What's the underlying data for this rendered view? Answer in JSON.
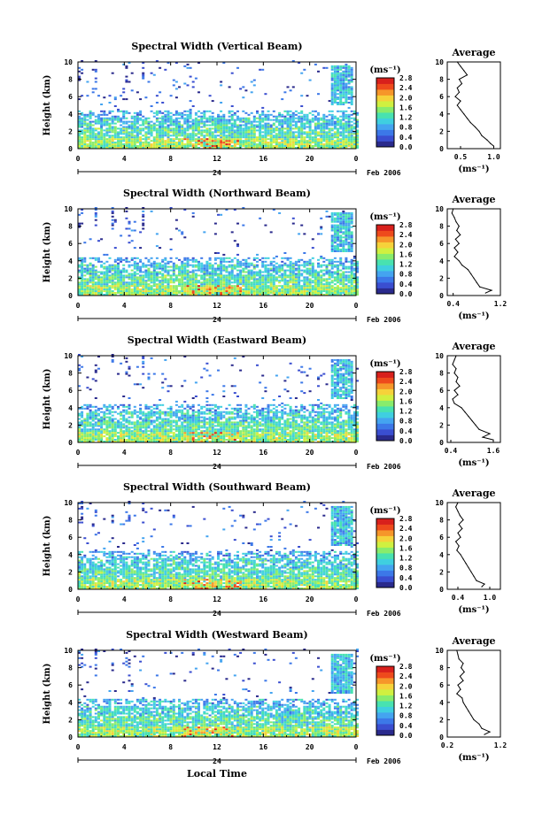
{
  "figure": {
    "date_label": "Feb 2006",
    "day_label": "24",
    "xlabel": "Local Time",
    "avg_title": "Average",
    "avg_xlabel": "(ms⁻¹)",
    "cbar_unit": "(ms⁻¹)"
  },
  "colors": {
    "scale": [
      "#2a2a8c",
      "#3a4ed0",
      "#3c78e8",
      "#44a4f0",
      "#3fcfe0",
      "#48e2b0",
      "#88ec6c",
      "#d0f040",
      "#f6d23a",
      "#f6962a",
      "#ee4a1c",
      "#d8201c"
    ]
  },
  "chart_data": [
    {
      "type": "heatmap",
      "title": "Spectral Width (Vertical Beam)",
      "xlabel": "Local Time",
      "ylabel": "Height (km)",
      "xlim": [
        0,
        24
      ],
      "ylim": [
        0,
        10
      ],
      "x_ticks": [
        "0",
        "4",
        "8",
        "12",
        "16",
        "20",
        "0"
      ],
      "y_ticks": [
        "0",
        "2",
        "4",
        "6",
        "8",
        "10"
      ],
      "colorbar": {
        "unit": "(ms⁻¹)",
        "range": [
          0,
          2.8
        ],
        "ticks": [
          "0.0",
          "0.4",
          "0.8",
          "1.2",
          "1.6",
          "2.0",
          "2.4",
          "2.8"
        ]
      },
      "average_profile": {
        "title": "Average",
        "xlabel": "(ms⁻¹)",
        "xlim": [
          0.3,
          1.1
        ],
        "x_ticks": [
          "0.5",
          "1.0"
        ],
        "y_ticks": [
          "0",
          "2",
          "4",
          "6",
          "8",
          "10"
        ],
        "heights": [
          0.3,
          0.6,
          1,
          1.5,
          2,
          2.5,
          3,
          3.5,
          4,
          4.5,
          5,
          5.5,
          6,
          6.5,
          7,
          7.5,
          8,
          8.5,
          9,
          9.5,
          10
        ],
        "values": [
          1.0,
          0.95,
          0.9,
          0.82,
          0.78,
          0.72,
          0.65,
          0.6,
          0.55,
          0.5,
          0.45,
          0.5,
          0.42,
          0.48,
          0.45,
          0.52,
          0.48,
          0.6,
          0.55,
          0.5,
          0.45
        ]
      }
    },
    {
      "type": "heatmap",
      "title": "Spectral Width (Northward Beam)",
      "xlabel": "Local Time",
      "ylabel": "Height (km)",
      "xlim": [
        0,
        24
      ],
      "ylim": [
        0,
        10
      ],
      "x_ticks": [
        "0",
        "4",
        "8",
        "12",
        "16",
        "20",
        "0"
      ],
      "y_ticks": [
        "0",
        "2",
        "4",
        "6",
        "8",
        "10"
      ],
      "colorbar": {
        "unit": "(ms⁻¹)",
        "range": [
          0,
          2.8
        ],
        "ticks": [
          "0.0",
          "0.4",
          "0.8",
          "1.2",
          "1.6",
          "2.0",
          "2.4",
          "2.8"
        ]
      },
      "average_profile": {
        "title": "Average",
        "xlabel": "(ms⁻¹)",
        "xlim": [
          0.3,
          1.2
        ],
        "x_ticks": [
          "0.4",
          "1.2"
        ],
        "y_ticks": [
          "0",
          "2",
          "4",
          "6",
          "8",
          "10"
        ],
        "heights": [
          0.3,
          0.6,
          1,
          1.5,
          2,
          2.5,
          3,
          3.5,
          4,
          4.5,
          5,
          5.5,
          6,
          6.5,
          7,
          7.5,
          8,
          8.5,
          9,
          9.5,
          10
        ],
        "values": [
          0.95,
          1.05,
          0.85,
          0.8,
          0.75,
          0.7,
          0.65,
          0.55,
          0.5,
          0.42,
          0.48,
          0.42,
          0.5,
          0.44,
          0.52,
          0.46,
          0.5,
          0.45,
          0.42,
          0.38,
          0.4
        ]
      }
    },
    {
      "type": "heatmap",
      "title": "Spectral Width (Eastward Beam)",
      "xlabel": "Local Time",
      "ylabel": "Height (km)",
      "xlim": [
        0,
        24
      ],
      "ylim": [
        0,
        10
      ],
      "x_ticks": [
        "0",
        "4",
        "8",
        "12",
        "16",
        "20",
        "0"
      ],
      "y_ticks": [
        "0",
        "2",
        "4",
        "6",
        "8",
        "10"
      ],
      "colorbar": {
        "unit": "(ms⁻¹)",
        "range": [
          0,
          2.8
        ],
        "ticks": [
          "0.0",
          "0.4",
          "0.8",
          "1.2",
          "1.6",
          "2.0",
          "2.4",
          "2.8"
        ]
      },
      "average_profile": {
        "title": "Average",
        "xlabel": "(ms⁻¹)",
        "xlim": [
          0.3,
          1.8
        ],
        "x_ticks": [
          "0.4",
          "1.6"
        ],
        "y_ticks": [
          "0",
          "2",
          "4",
          "6",
          "8",
          "10"
        ],
        "heights": [
          0.3,
          0.6,
          1,
          1.5,
          2,
          2.5,
          3,
          3.5,
          4,
          4.5,
          5,
          5.5,
          6,
          6.5,
          7,
          7.5,
          8,
          8.5,
          9,
          9.5,
          10
        ],
        "values": [
          1.6,
          1.3,
          1.5,
          1.2,
          1.1,
          1.0,
          0.9,
          0.8,
          0.7,
          0.5,
          0.45,
          0.6,
          0.5,
          0.65,
          0.55,
          0.6,
          0.5,
          0.55,
          0.45,
          0.5,
          0.55
        ]
      }
    },
    {
      "type": "heatmap",
      "title": "Spectral Width (Southward Beam)",
      "xlabel": "Local Time",
      "ylabel": "Height (km)",
      "xlim": [
        0,
        24
      ],
      "ylim": [
        0,
        10
      ],
      "x_ticks": [
        "0",
        "4",
        "8",
        "12",
        "16",
        "20",
        "0"
      ],
      "y_ticks": [
        "0",
        "2",
        "4",
        "6",
        "8",
        "10"
      ],
      "colorbar": {
        "unit": "(ms⁻¹)",
        "range": [
          0,
          2.8
        ],
        "ticks": [
          "0.0",
          "0.4",
          "0.8",
          "1.2",
          "1.6",
          "2.0",
          "2.4",
          "2.8"
        ]
      },
      "average_profile": {
        "title": "Average",
        "xlabel": "(ms⁻¹)",
        "xlim": [
          0.2,
          1.2
        ],
        "x_ticks": [
          "0.4",
          "1.0"
        ],
        "y_ticks": [
          "0",
          "2",
          "4",
          "6",
          "8",
          "10"
        ],
        "heights": [
          0.3,
          0.6,
          1,
          1.5,
          2,
          2.5,
          3,
          3.5,
          4,
          4.5,
          5,
          5.5,
          6,
          6.5,
          7,
          7.5,
          8,
          8.5,
          9,
          9.5,
          10
        ],
        "values": [
          0.85,
          0.9,
          0.75,
          0.7,
          0.65,
          0.6,
          0.55,
          0.5,
          0.45,
          0.38,
          0.42,
          0.36,
          0.45,
          0.4,
          0.48,
          0.42,
          0.5,
          0.44,
          0.4,
          0.36,
          0.4
        ]
      }
    },
    {
      "type": "heatmap",
      "title": "Spectral Width (Westward Beam)",
      "xlabel": "Local Time",
      "ylabel": "Height (km)",
      "xlim": [
        0,
        24
      ],
      "ylim": [
        0,
        10
      ],
      "x_ticks": [
        "0",
        "4",
        "8",
        "12",
        "16",
        "20",
        "0"
      ],
      "y_ticks": [
        "0",
        "2",
        "4",
        "6",
        "8",
        "10"
      ],
      "colorbar": {
        "unit": "(ms⁻¹)",
        "range": [
          0,
          2.8
        ],
        "ticks": [
          "0.0",
          "0.4",
          "0.8",
          "1.2",
          "1.6",
          "2.0",
          "2.4",
          "2.8"
        ]
      },
      "average_profile": {
        "title": "Average",
        "xlabel": "(ms⁻¹)",
        "xlim": [
          0.2,
          1.2
        ],
        "x_ticks": [
          "0.2",
          "1.2"
        ],
        "y_ticks": [
          "0",
          "2",
          "4",
          "6",
          "8",
          "10"
        ],
        "heights": [
          0.3,
          0.6,
          1,
          1.5,
          2,
          2.5,
          3,
          3.5,
          4,
          4.5,
          5,
          5.5,
          6,
          6.5,
          7,
          7.5,
          8,
          8.5,
          9,
          9.5,
          10
        ],
        "values": [
          0.9,
          1.0,
          0.85,
          0.8,
          0.7,
          0.65,
          0.6,
          0.55,
          0.5,
          0.48,
          0.38,
          0.45,
          0.4,
          0.5,
          0.44,
          0.52,
          0.46,
          0.5,
          0.42,
          0.4,
          0.38
        ]
      }
    }
  ]
}
